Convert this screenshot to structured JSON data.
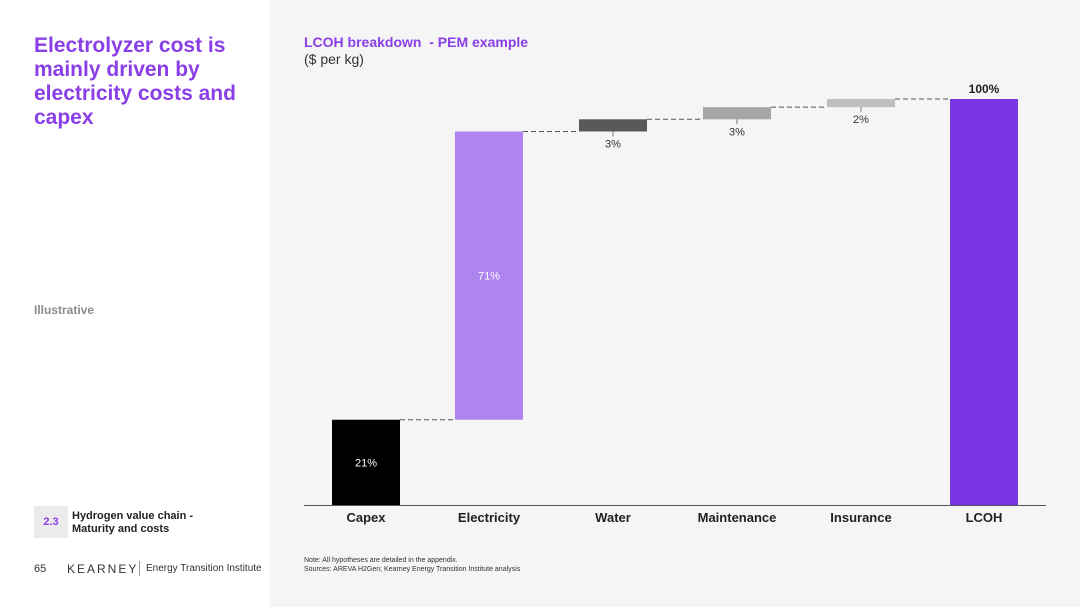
{
  "headline": "Electrolyzer cost is mainly driven by electricity costs and capex",
  "illustrative_label": "Illustrative",
  "section": {
    "number": "2.3",
    "title": "Hydrogen value chain - Maturity and costs"
  },
  "page_number": "65",
  "brand": {
    "logo": "KEARNEY",
    "sub": "Energy Transition Institute"
  },
  "chart_header": {
    "title": "LCOH breakdown  - PEM example",
    "unit": "($ per kg)"
  },
  "notes": [
    "Note: All hypotheses are detailed in the appendix.",
    "Sources: AREVA H2Gen; Kearney Energy Transition Institute analysis"
  ],
  "chart_data": {
    "type": "bar",
    "subtype": "waterfall",
    "categories": [
      "Capex",
      "Electricity",
      "Water",
      "Maintenance",
      "Insurance",
      "LCOH"
    ],
    "values": [
      21,
      71,
      3,
      3,
      2,
      100
    ],
    "labels": [
      "21%",
      "71%",
      "3%",
      "3%",
      "2%",
      "100%"
    ],
    "total_index": 5,
    "ylim": [
      0,
      100
    ],
    "colors": [
      "#000000",
      "#ae85ee",
      "#595959",
      "#a6a6a6",
      "#bfbfbf",
      "#7b35e3"
    ],
    "connector_style": "dashed",
    "grid": false
  }
}
